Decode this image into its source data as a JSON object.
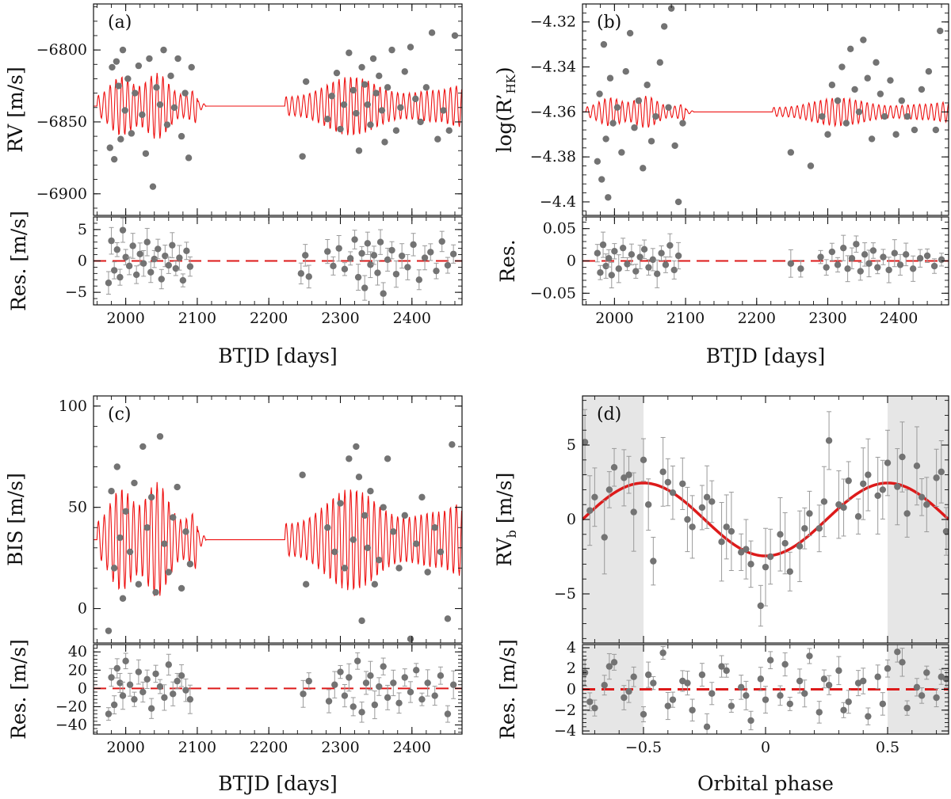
{
  "chart_data": [
    {
      "id": "a",
      "type": "line+scatter",
      "panel_label": "(a)",
      "top": {
        "ylabel": "RV [m/s]",
        "ylim": [
          -6915,
          -6768
        ],
        "yticks": [
          -6900,
          -6850,
          -6800
        ],
        "model_baseline": -6839,
        "model_amplitude": 26,
        "model_period_days": 8.2,
        "points": {
          "x": [
            1978,
            1981,
            1984,
            1987,
            1990,
            1993,
            1996,
            1999,
            2003,
            2008,
            2013,
            2018,
            2023,
            2028,
            2033,
            2038,
            2043,
            2048,
            2053,
            2058,
            2063,
            2068,
            2073,
            2078,
            2083,
            2088,
            2092,
            2247,
            2252,
            2282,
            2288,
            2295,
            2300,
            2305,
            2312,
            2318,
            2322,
            2326,
            2330,
            2334,
            2338,
            2342,
            2346,
            2350,
            2354,
            2358,
            2362,
            2366,
            2372,
            2378,
            2384,
            2390,
            2398,
            2405,
            2412,
            2420,
            2428,
            2436,
            2444,
            2452,
            2460
          ],
          "y": [
            -6868,
            -6812,
            -6876,
            -6808,
            -6825,
            -6862,
            -6800,
            -6842,
            -6820,
            -6858,
            -6830,
            -6811,
            -6845,
            -6872,
            -6806,
            -6895,
            -6826,
            -6838,
            -6800,
            -6852,
            -6818,
            -6840,
            -6806,
            -6860,
            -6830,
            -6875,
            -6812,
            -6874,
            -6822,
            -6848,
            -6832,
            -6816,
            -6855,
            -6838,
            -6802,
            -6828,
            -6844,
            -6870,
            -6812,
            -6824,
            -6838,
            -6852,
            -6806,
            -6830,
            -6818,
            -6842,
            -6864,
            -6826,
            -6800,
            -6856,
            -6840,
            -6815,
            -6798,
            -6834,
            -6850,
            -6826,
            -6788,
            -6862,
            -6842,
            -6856,
            -6790
          ]
        }
      },
      "bottom": {
        "ylabel": "Res. [m/s]",
        "ylim": [
          -7,
          7
        ],
        "yticks": [
          -5,
          0,
          5
        ],
        "points": {
          "x": [
            1976,
            1980,
            1984,
            1988,
            1992,
            1996,
            2000,
            2005,
            2010,
            2015,
            2020,
            2025,
            2030,
            2035,
            2040,
            2045,
            2050,
            2055,
            2060,
            2065,
            2070,
            2075,
            2080,
            2085,
            2090,
            2245,
            2251,
            2256,
            2282,
            2290,
            2298,
            2306,
            2314,
            2320,
            2325,
            2330,
            2334,
            2338,
            2342,
            2347,
            2352,
            2356,
            2360,
            2366,
            2372,
            2378,
            2386,
            2394,
            2402,
            2410,
            2418,
            2426,
            2434,
            2442,
            2450,
            2458
          ],
          "y": [
            -3.5,
            3.2,
            -1.5,
            1.8,
            -2.6,
            4.9,
            0.6,
            -0.8,
            2.4,
            -2.2,
            1.1,
            -0.4,
            3.0,
            -1.8,
            0.3,
            1.9,
            -2.9,
            0.8,
            -0.7,
            2.5,
            -1.2,
            0.5,
            -3.1,
            1.6,
            -0.9,
            -2.0,
            0.9,
            -2.5,
            1.5,
            -0.8,
            2.0,
            -1.3,
            0.4,
            3.4,
            -2.6,
            1.2,
            -4.3,
            2.8,
            -0.6,
            0.9,
            -1.9,
            3.0,
            -5.2,
            0.2,
            1.7,
            -2.1,
            0.8,
            -1.0,
            2.6,
            -3.0,
            0.5,
            1.4,
            -1.6,
            3.1,
            -0.7,
            1.1
          ]
        }
      },
      "xlabel": "BTJD [days]",
      "xlim": [
        1955,
        2470
      ],
      "xticks": [
        2000,
        2100,
        2200,
        2300,
        2400
      ]
    },
    {
      "id": "b",
      "type": "line+scatter",
      "panel_label": "(b)",
      "top": {
        "ylabel": "log(R’HK)",
        "ylim": [
          -4.406,
          -4.312
        ],
        "yticks": [
          -4.4,
          -4.38,
          -4.36,
          -4.34,
          -4.32
        ],
        "model_baseline": -4.36,
        "model_amplitude": 0.008,
        "model_period_days": 8.2,
        "points": {
          "x": [
            1976,
            1979,
            1982,
            1985,
            1988,
            1991,
            1994,
            1998,
            2004,
            2010,
            2016,
            2022,
            2028,
            2034,
            2040,
            2046,
            2052,
            2058,
            2064,
            2070,
            2076,
            2080,
            2085,
            2090,
            2096,
            2248,
            2276,
            2292,
            2300,
            2306,
            2314,
            2320,
            2326,
            2332,
            2338,
            2344,
            2350,
            2356,
            2362,
            2368,
            2374,
            2380,
            2388,
            2396,
            2404,
            2412,
            2422,
            2432,
            2442,
            2452,
            2458
          ],
          "y": [
            -4.382,
            -4.352,
            -4.39,
            -4.33,
            -4.372,
            -4.398,
            -4.345,
            -4.365,
            -4.358,
            -4.378,
            -4.342,
            -4.325,
            -4.367,
            -4.355,
            -4.385,
            -4.348,
            -4.373,
            -4.362,
            -4.338,
            -4.322,
            -4.358,
            -4.314,
            -4.375,
            -4.4,
            -4.365,
            -4.378,
            -4.384,
            -4.362,
            -4.37,
            -4.348,
            -4.355,
            -4.34,
            -4.365,
            -4.332,
            -4.35,
            -4.36,
            -4.328,
            -4.345,
            -4.372,
            -4.338,
            -4.352,
            -4.362,
            -4.346,
            -4.37,
            -4.355,
            -4.362,
            -4.368,
            -4.35,
            -4.342,
            -4.368,
            -4.324
          ]
        }
      },
      "bottom": {
        "ylabel": "Res.",
        "ylim": [
          -0.068,
          0.068
        ],
        "yticks": [
          -0.05,
          0,
          0.05
        ],
        "points": {
          "x": [
            1976,
            1980,
            1984,
            1988,
            1992,
            1996,
            2000,
            2006,
            2012,
            2018,
            2024,
            2030,
            2036,
            2042,
            2048,
            2054,
            2060,
            2066,
            2072,
            2078,
            2084,
            2090,
            2248,
            2262,
            2290,
            2298,
            2306,
            2314,
            2322,
            2328,
            2334,
            2340,
            2346,
            2352,
            2358,
            2364,
            2370,
            2378,
            2386,
            2394,
            2402,
            2410,
            2420,
            2430,
            2440,
            2450,
            2460
          ],
          "y": [
            0.012,
            -0.018,
            0.025,
            -0.008,
            0.004,
            -0.022,
            0.015,
            -0.012,
            0.02,
            -0.005,
            0.01,
            -0.016,
            0.006,
            0.018,
            -0.01,
            0.002,
            -0.02,
            0.012,
            -0.006,
            0.024,
            -0.014,
            0.008,
            -0.004,
            -0.012,
            0.006,
            -0.01,
            0.014,
            -0.006,
            0.02,
            -0.012,
            0.004,
            0.026,
            -0.016,
            0.01,
            -0.004,
            0.016,
            -0.01,
            0.006,
            -0.014,
            0.012,
            -0.006,
            0.01,
            -0.012,
            0.004,
            0.008,
            -0.008,
            0.002
          ]
        }
      },
      "xlabel": "BTJD [days]",
      "xlim": [
        1955,
        2470
      ],
      "xticks": [
        2000,
        2100,
        2200,
        2300,
        2400
      ]
    },
    {
      "id": "c",
      "type": "line+scatter",
      "panel_label": "(c)",
      "top": {
        "ylabel": "BIS [m/s]",
        "ylim": [
          -17,
          105
        ],
        "yticks": [
          0,
          50,
          100
        ],
        "model_baseline": 34,
        "model_amplitude": 32,
        "model_period_days": 8.2,
        "points": {
          "x": [
            1976,
            1980,
            1984,
            1988,
            1992,
            1996,
            2000,
            2006,
            2012,
            2018,
            2024,
            2030,
            2036,
            2042,
            2048,
            2054,
            2060,
            2066,
            2072,
            2078,
            2084,
            2090,
            2247,
            2252,
            2282,
            2292,
            2300,
            2306,
            2312,
            2318,
            2322,
            2326,
            2330,
            2334,
            2338,
            2342,
            2348,
            2354,
            2360,
            2366,
            2374,
            2382,
            2390,
            2398,
            2406,
            2414,
            2422,
            2432,
            2440,
            2450,
            2456
          ],
          "y": [
            -11,
            58,
            20,
            70,
            35,
            5,
            48,
            28,
            62,
            12,
            80,
            40,
            55,
            8,
            85,
            32,
            18,
            45,
            60,
            10,
            38,
            22,
            66,
            12,
            40,
            28,
            52,
            20,
            74,
            34,
            80,
            65,
            -6,
            46,
            30,
            58,
            12,
            24,
            50,
            74,
            38,
            20,
            46,
            -15,
            32,
            55,
            18,
            40,
            28,
            -5,
            81
          ]
        }
      },
      "bottom": {
        "ylabel": "Res. [m/s]",
        "ylim": [
          -50,
          48
        ],
        "yticks": [
          -40,
          -20,
          0,
          20,
          40
        ],
        "points": {
          "x": [
            1976,
            1980,
            1984,
            1988,
            1992,
            1996,
            2000,
            2006,
            2012,
            2018,
            2024,
            2030,
            2036,
            2042,
            2048,
            2054,
            2060,
            2066,
            2072,
            2078,
            2084,
            2090,
            2248,
            2256,
            2284,
            2292,
            2300,
            2306,
            2312,
            2318,
            2324,
            2330,
            2336,
            2342,
            2348,
            2354,
            2360,
            2366,
            2374,
            2382,
            2390,
            2398,
            2406,
            2414,
            2422,
            2432,
            2440,
            2450,
            2458
          ],
          "y": [
            -28,
            12,
            -18,
            22,
            6,
            -8,
            30,
            4,
            -12,
            18,
            -4,
            10,
            -22,
            16,
            2,
            -10,
            26,
            -6,
            8,
            14,
            -2,
            -12,
            -6,
            8,
            -14,
            4,
            18,
            -8,
            12,
            -20,
            30,
            -26,
            6,
            14,
            -18,
            2,
            24,
            -10,
            6,
            -16,
            12,
            -4,
            20,
            -12,
            6,
            -8,
            14,
            -28,
            4
          ]
        }
      },
      "xlabel": "BTJD [days]",
      "xlim": [
        1955,
        2470
      ],
      "xticks": [
        2000,
        2100,
        2200,
        2300,
        2400
      ]
    },
    {
      "id": "d",
      "type": "line+scatter",
      "panel_label": "(d)",
      "shaded_ranges": [
        [
          -0.75,
          -0.5
        ],
        [
          0.5,
          0.75
        ]
      ],
      "top": {
        "ylabel": "RVb [m/s]",
        "ylim": [
          -8.3,
          8.3
        ],
        "yticks": [
          -5,
          0,
          5
        ],
        "model": "sine",
        "model_amplitude": 2.45,
        "points": {
          "x": [
            -0.74,
            -0.7,
            -0.66,
            -0.62,
            -0.58,
            -0.54,
            -0.5,
            -0.46,
            -0.42,
            -0.38,
            -0.34,
            -0.3,
            -0.26,
            -0.22,
            -0.18,
            -0.14,
            -0.1,
            -0.06,
            -0.02,
            0.02,
            0.06,
            0.1,
            0.14,
            0.18,
            0.22,
            0.26,
            0.3,
            0.34,
            0.38,
            0.42,
            0.46,
            0.5,
            0.54,
            0.58,
            0.62,
            0.66,
            0.7,
            0.74,
            -0.72,
            -0.64,
            -0.56,
            -0.48,
            -0.4,
            -0.32,
            -0.24,
            -0.16,
            -0.08,
            0.0,
            0.08,
            0.16,
            0.24,
            0.32,
            0.4,
            0.48,
            0.56,
            0.64,
            0.72
          ],
          "y": [
            5.2,
            1.5,
            -1.2,
            3.5,
            2.8,
            0.5,
            4.0,
            -2.8,
            3.2,
            1.8,
            2.4,
            -0.5,
            0.8,
            1.2,
            -1.5,
            -0.8,
            -2.2,
            -3.0,
            -5.8,
            -2.5,
            -1.0,
            -3.5,
            -1.8,
            0.4,
            -0.6,
            5.3,
            1.0,
            2.6,
            0.2,
            3.0,
            1.6,
            3.8,
            2.2,
            0.4,
            3.6,
            1.0,
            2.8,
            -0.8,
            0.6,
            2.0,
            3.0,
            1.0,
            2.5,
            0.0,
            1.5,
            -0.5,
            -2.0,
            -3.2,
            -1.6,
            -0.6,
            1.2,
            0.8,
            2.4,
            2.0,
            4.2,
            1.5,
            3.2
          ]
        }
      },
      "bottom": {
        "ylabel": "Res. [m/s]",
        "ylim": [
          -4.3,
          4.3
        ],
        "yticks": [
          -4,
          -2,
          0,
          2,
          4
        ],
        "points": {
          "x": [
            -0.74,
            -0.7,
            -0.66,
            -0.62,
            -0.58,
            -0.54,
            -0.5,
            -0.46,
            -0.42,
            -0.38,
            -0.34,
            -0.3,
            -0.26,
            -0.22,
            -0.18,
            -0.14,
            -0.1,
            -0.06,
            -0.02,
            0.02,
            0.06,
            0.1,
            0.14,
            0.18,
            0.22,
            0.26,
            0.3,
            0.34,
            0.38,
            0.42,
            0.46,
            0.5,
            0.54,
            0.58,
            0.62,
            0.66,
            0.7,
            0.74,
            -0.72,
            -0.64,
            -0.56,
            -0.48,
            -0.4,
            -0.32,
            -0.24,
            -0.16,
            -0.08,
            0.0,
            0.08,
            0.16,
            0.24,
            0.32,
            0.4,
            0.48,
            0.56,
            0.64,
            0.72
          ],
          "y": [
            1.6,
            -1.8,
            0.4,
            2.6,
            -0.8,
            1.2,
            -2.4,
            0.6,
            3.5,
            -1.0,
            0.8,
            -2.0,
            1.4,
            -0.4,
            2.2,
            -1.6,
            0.2,
            -3.0,
            1.0,
            2.8,
            -0.6,
            -1.4,
            0.8,
            3.2,
            -2.2,
            0.4,
            1.8,
            -1.2,
            0.6,
            -2.6,
            1.2,
            2.0,
            3.6,
            -1.8,
            0.2,
            1.6,
            -0.8,
            1.0,
            -1.2,
            2.2,
            -0.2,
            1.4,
            -1.6,
            0.6,
            -3.6,
            1.8,
            -0.6,
            -1.0,
            2.4,
            -0.4,
            1.0,
            -2.0,
            0.8,
            -1.4,
            2.6,
            -0.6,
            1.2
          ]
        }
      },
      "xlabel": "Orbital phase",
      "xlim": [
        -0.75,
        0.75
      ],
      "xticks": [
        -0.5,
        0,
        0.5
      ]
    }
  ]
}
